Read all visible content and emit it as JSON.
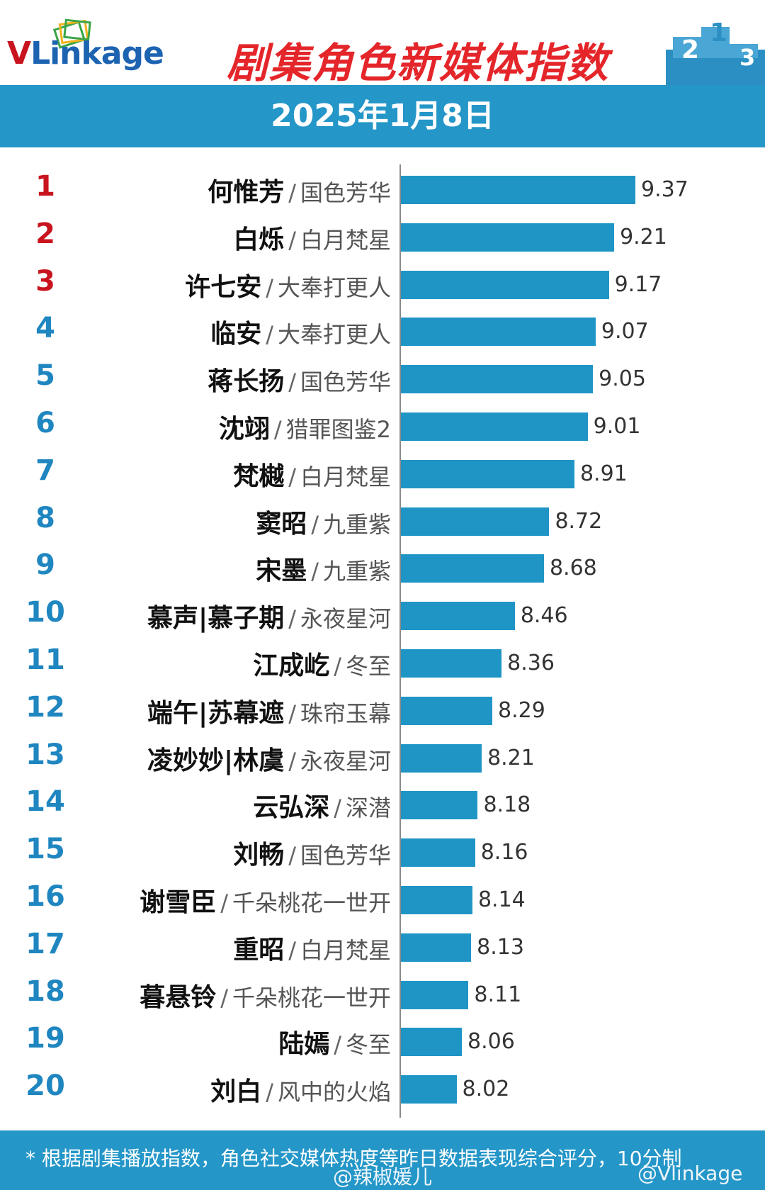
{
  "header": {
    "logo_text_v": "V",
    "logo_text_rest": "Linkage",
    "title": "剧集角色新媒体指数",
    "date": "2025年1月8日",
    "podium_labels": [
      "2",
      "1",
      "3"
    ]
  },
  "colors": {
    "bar": "#1f95c6",
    "band": "#2496c8",
    "title": "#e4262b",
    "rank_top": "#c8141e",
    "rank": "#1f86c0"
  },
  "chart_data": {
    "type": "bar",
    "orientation": "horizontal",
    "xlim": [
      7.6,
      9.6
    ],
    "categories": [
      {
        "rank": "1",
        "name": "何惟芳",
        "show": "国色芳华"
      },
      {
        "rank": "2",
        "name": "白烁",
        "show": "白月梵星"
      },
      {
        "rank": "3",
        "name": "许七安",
        "show": "大奉打更人"
      },
      {
        "rank": "4",
        "name": "临安",
        "show": "大奉打更人"
      },
      {
        "rank": "5",
        "name": "蒋长扬",
        "show": "国色芳华"
      },
      {
        "rank": "6",
        "name": "沈翊",
        "show": "猎罪图鉴2"
      },
      {
        "rank": "7",
        "name": "梵樾",
        "show": "白月梵星"
      },
      {
        "rank": "8",
        "name": "窦昭",
        "show": "九重紫"
      },
      {
        "rank": "9",
        "name": "宋墨",
        "show": "九重紫"
      },
      {
        "rank": "10",
        "name": "慕声|慕子期",
        "show": "永夜星河"
      },
      {
        "rank": "11",
        "name": "江成屹",
        "show": "冬至"
      },
      {
        "rank": "12",
        "name": "端午|苏幕遮",
        "show": "珠帘玉幕"
      },
      {
        "rank": "13",
        "name": "凌妙妙|林虞",
        "show": "永夜星河"
      },
      {
        "rank": "14",
        "name": "云弘深",
        "show": "深潜"
      },
      {
        "rank": "15",
        "name": "刘畅",
        "show": "国色芳华"
      },
      {
        "rank": "16",
        "name": "谢雪臣",
        "show": "千朵桃花一世开"
      },
      {
        "rank": "17",
        "name": "重昭",
        "show": "白月梵星"
      },
      {
        "rank": "18",
        "name": "暮悬铃",
        "show": "千朵桃花一世开"
      },
      {
        "rank": "19",
        "name": "陆嫣",
        "show": "冬至"
      },
      {
        "rank": "20",
        "name": "刘白",
        "show": "风中的火焰"
      }
    ],
    "values": [
      9.37,
      9.21,
      9.17,
      9.07,
      9.05,
      9.01,
      8.91,
      8.72,
      8.68,
      8.46,
      8.36,
      8.29,
      8.21,
      8.18,
      8.16,
      8.14,
      8.13,
      8.11,
      8.06,
      8.02
    ],
    "value_labels": [
      "9.37",
      "9.21",
      "9.17",
      "9.07",
      "9.05",
      "9.01",
      "8.91",
      "8.72",
      "8.68",
      "8.46",
      "8.36",
      "8.29",
      "8.21",
      "8.18",
      "8.16",
      "8.14",
      "8.13",
      "8.11",
      "8.06",
      "8.02"
    ],
    "separator": "/",
    "grid": false,
    "legend": "none"
  },
  "footer": {
    "note": "* 根据剧集播放指数，角色社交媒体热度等昨日数据表现综合评分，10分制",
    "watermark_1": "@辣椒媛儿",
    "watermark_2": "@Vlinkage"
  }
}
